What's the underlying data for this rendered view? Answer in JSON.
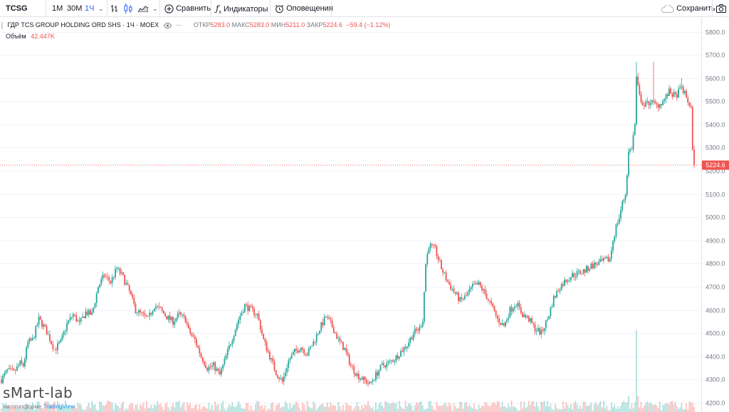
{
  "toolbar": {
    "symbol": "TCSG",
    "intervals": [
      "1M",
      "30M",
      "1Ч"
    ],
    "compare_label": "Сравнить",
    "indicators_label": "Индикаторы",
    "alerts_label": "Оповещения",
    "save_label": "Сохранить"
  },
  "legend": {
    "title": "ГДР TCS GROUP HOLDING ORD SHS · 1Ч · MOEX",
    "open_label": "ОТКР",
    "open": "5283.0",
    "high_label": "МАКС",
    "high": "5283.0",
    "low_label": "МИН",
    "low": "5211.0",
    "close_label": "ЗАКР",
    "close": "5224.6",
    "change": "−59.4 (−1.12%)"
  },
  "volume": {
    "label": "Объём",
    "value": "42.447K"
  },
  "watermark": "sMart-lab",
  "powered": {
    "prefix": "на платформе",
    "brand": "TradingView"
  },
  "colors": {
    "up": "#26a69a",
    "down": "#ef5350",
    "grid": "#f0f3fa",
    "axis_text": "#787b86"
  },
  "chart_data": {
    "type": "candlestick",
    "symbol": "TCSG",
    "exchange": "MOEX",
    "interval": "1Ч",
    "ylim": [
      4160,
      5860
    ],
    "y_ticks": [
      4200,
      4300,
      4400,
      4500,
      4600,
      4700,
      4800,
      4900,
      5000,
      5100,
      5200,
      5300,
      5400,
      5500,
      5600,
      5700,
      5800
    ],
    "last_price": 5224.6,
    "last_price_label": "5224.6",
    "grid": true,
    "close_path": [
      [
        0,
        4300
      ],
      [
        4,
        4340
      ],
      [
        8,
        4330
      ],
      [
        12,
        4370
      ],
      [
        14,
        4360
      ],
      [
        17,
        4460
      ],
      [
        20,
        4470
      ],
      [
        24,
        4560
      ],
      [
        28,
        4520
      ],
      [
        34,
        4430
      ],
      [
        38,
        4460
      ],
      [
        42,
        4540
      ],
      [
        46,
        4580
      ],
      [
        50,
        4540
      ],
      [
        54,
        4590
      ],
      [
        58,
        4580
      ],
      [
        62,
        4700
      ],
      [
        66,
        4750
      ],
      [
        70,
        4720
      ],
      [
        74,
        4780
      ],
      [
        78,
        4740
      ],
      [
        82,
        4680
      ],
      [
        86,
        4600
      ],
      [
        90,
        4580
      ],
      [
        94,
        4560
      ],
      [
        98,
        4620
      ],
      [
        102,
        4600
      ],
      [
        106,
        4570
      ],
      [
        110,
        4550
      ],
      [
        114,
        4580
      ],
      [
        118,
        4560
      ],
      [
        120,
        4510
      ],
      [
        124,
        4470
      ],
      [
        128,
        4400
      ],
      [
        132,
        4350
      ],
      [
        136,
        4360
      ],
      [
        140,
        4320
      ],
      [
        144,
        4400
      ],
      [
        148,
        4480
      ],
      [
        152,
        4560
      ],
      [
        156,
        4620
      ],
      [
        160,
        4600
      ],
      [
        164,
        4580
      ],
      [
        168,
        4470
      ],
      [
        172,
        4400
      ],
      [
        176,
        4330
      ],
      [
        180,
        4290
      ],
      [
        184,
        4380
      ],
      [
        188,
        4420
      ],
      [
        192,
        4440
      ],
      [
        196,
        4410
      ],
      [
        200,
        4460
      ],
      [
        204,
        4520
      ],
      [
        208,
        4570
      ],
      [
        212,
        4530
      ],
      [
        216,
        4470
      ],
      [
        220,
        4430
      ],
      [
        224,
        4360
      ],
      [
        228,
        4320
      ],
      [
        232,
        4300
      ],
      [
        236,
        4280
      ],
      [
        240,
        4320
      ],
      [
        244,
        4360
      ],
      [
        248,
        4370
      ],
      [
        252,
        4390
      ],
      [
        256,
        4420
      ],
      [
        260,
        4450
      ],
      [
        264,
        4500
      ],
      [
        268,
        4520
      ],
      [
        270,
        4560
      ],
      [
        272,
        4800
      ],
      [
        274,
        4880
      ],
      [
        278,
        4860
      ],
      [
        282,
        4780
      ],
      [
        286,
        4720
      ],
      [
        290,
        4680
      ],
      [
        294,
        4640
      ],
      [
        298,
        4660
      ],
      [
        302,
        4700
      ],
      [
        306,
        4710
      ],
      [
        310,
        4670
      ],
      [
        314,
        4620
      ],
      [
        318,
        4560
      ],
      [
        322,
        4530
      ],
      [
        326,
        4600
      ],
      [
        330,
        4630
      ],
      [
        334,
        4580
      ],
      [
        338,
        4560
      ],
      [
        342,
        4520
      ],
      [
        346,
        4500
      ],
      [
        350,
        4560
      ],
      [
        354,
        4650
      ],
      [
        358,
        4700
      ],
      [
        362,
        4730
      ],
      [
        366,
        4750
      ],
      [
        370,
        4760
      ],
      [
        374,
        4770
      ],
      [
        378,
        4790
      ],
      [
        382,
        4800
      ],
      [
        386,
        4810
      ],
      [
        390,
        4820
      ],
      [
        392,
        4900
      ],
      [
        394,
        4960
      ],
      [
        396,
        5000
      ],
      [
        398,
        5060
      ],
      [
        400,
        5100
      ],
      [
        402,
        5280
      ],
      [
        404,
        5300
      ],
      [
        406,
        5400
      ],
      [
        407,
        5600
      ],
      [
        409,
        5520
      ],
      [
        412,
        5480
      ],
      [
        416,
        5500
      ],
      [
        420,
        5480
      ],
      [
        424,
        5500
      ],
      [
        428,
        5540
      ],
      [
        432,
        5520
      ],
      [
        436,
        5560
      ],
      [
        440,
        5500
      ],
      [
        442,
        5470
      ],
      [
        443,
        5280
      ],
      [
        444,
        5224.6
      ]
    ],
    "spikes": [
      [
        407,
        5670
      ],
      [
        418,
        5670
      ],
      [
        436,
        5600
      ]
    ]
  }
}
